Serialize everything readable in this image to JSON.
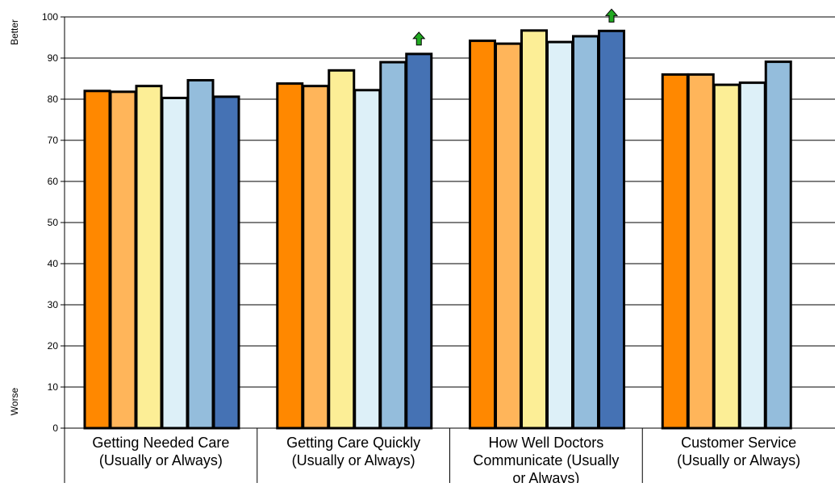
{
  "chart_data": {
    "type": "bar",
    "title": "",
    "xlabel": "",
    "ylabel": "",
    "y_axis_top_label": "Better",
    "y_axis_bottom_label": "Worse",
    "ylim": [
      0,
      100
    ],
    "yticks": [
      0,
      10,
      20,
      30,
      40,
      50,
      60,
      70,
      80,
      90,
      100
    ],
    "grid": true,
    "legend": "none",
    "categories": [
      "Getting Needed Care (Usually or Always)",
      "Getting Care Quickly (Usually or Always)",
      "How Well Doctors Communicate (Usually or Always)",
      "Customer Service (Usually or Always)"
    ],
    "category_lines": [
      [
        "Getting Needed Care",
        "(Usually or Always)"
      ],
      [
        "Getting Care Quickly",
        "(Usually or Always)"
      ],
      [
        "How Well Doctors",
        "Communicate (Usually",
        "or Always)"
      ],
      [
        "Customer Service",
        "(Usually or Always)"
      ]
    ],
    "series_colors": [
      "#FF8800",
      "#FFB55A",
      "#FCEE96",
      "#DDF0F8",
      "#94BDDC",
      "#4572B4"
    ],
    "series": [
      {
        "values": [
          82.0,
          83.8,
          94.2,
          86.0
        ]
      },
      {
        "values": [
          81.8,
          83.2,
          93.5,
          86.0
        ]
      },
      {
        "values": [
          83.2,
          87.0,
          96.7,
          83.5
        ]
      },
      {
        "values": [
          80.3,
          82.2,
          93.9,
          84.0
        ]
      },
      {
        "values": [
          84.6,
          89.0,
          95.3,
          89.1
        ]
      },
      {
        "values": [
          80.6,
          91.0,
          96.6,
          null
        ]
      }
    ],
    "annotations": [
      {
        "type": "up-arrow",
        "category": "Getting Care Quickly (Usually or Always)",
        "series_index": 5,
        "color": "#22AA22"
      },
      {
        "type": "up-arrow",
        "category": "How Well Doctors Communicate (Usually or Always)",
        "series_index": 5,
        "color": "#22AA22"
      }
    ]
  }
}
